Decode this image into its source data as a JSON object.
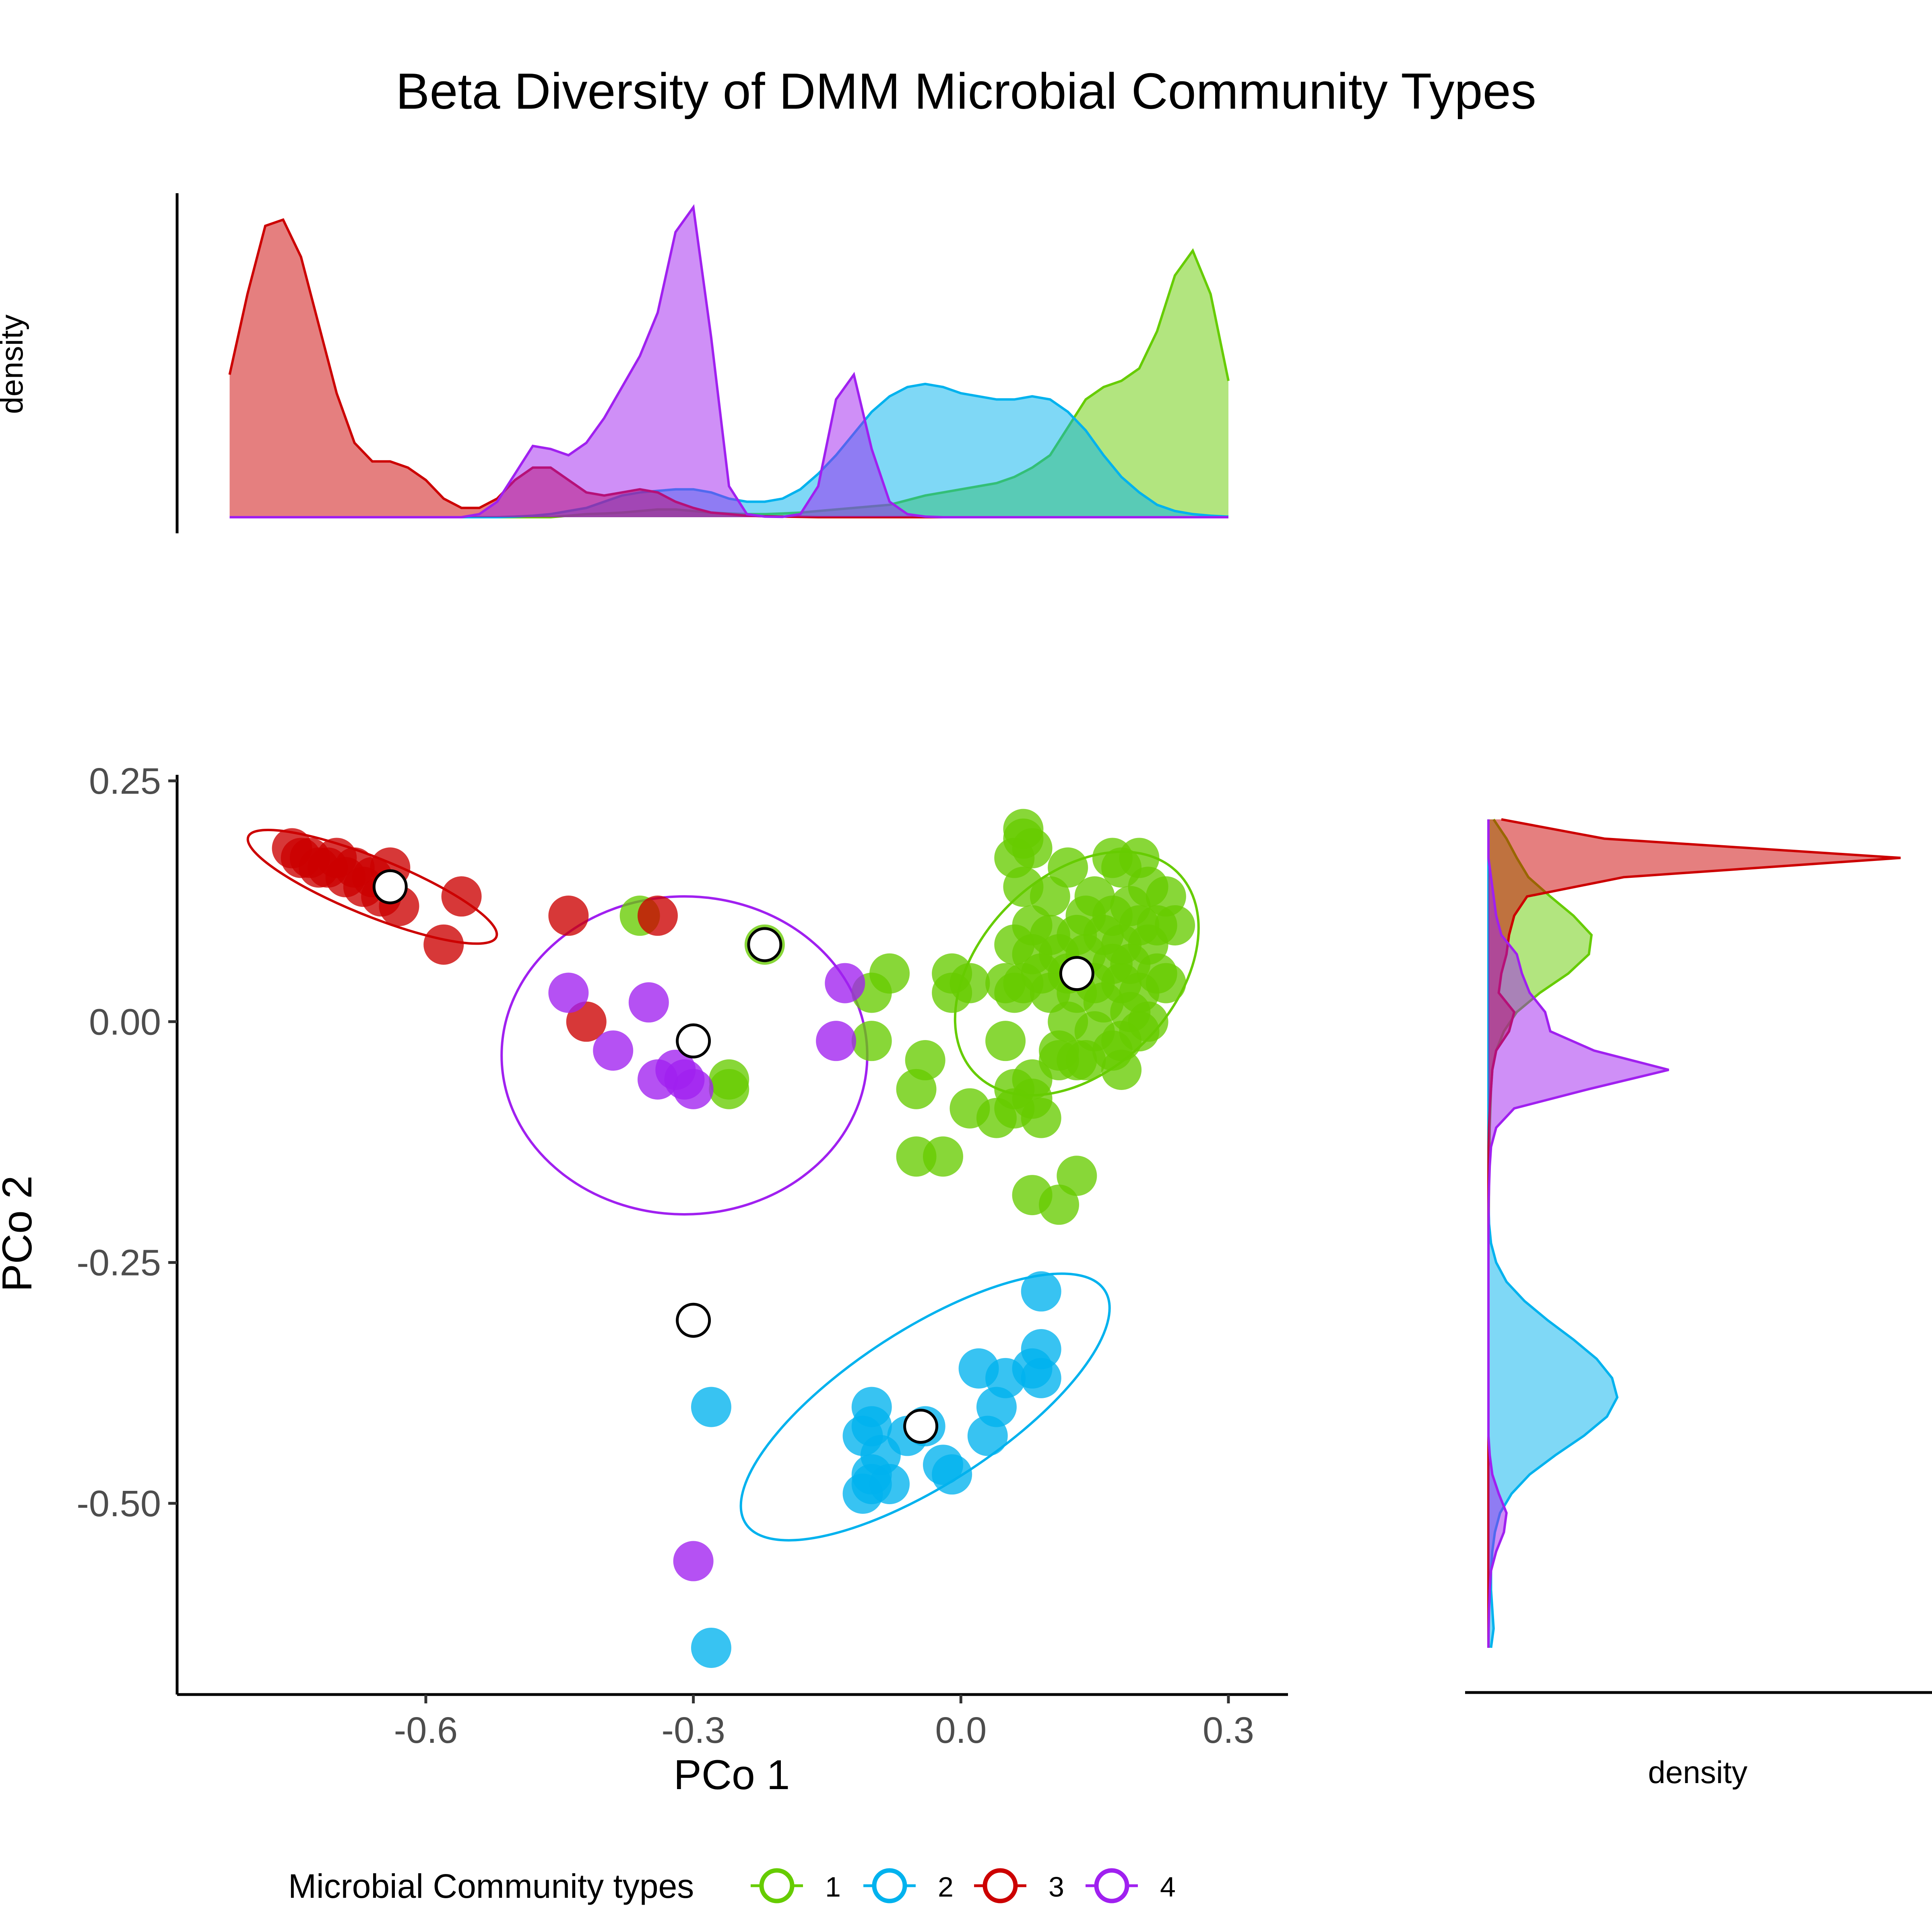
{
  "chart_data": {
    "type": "scatter",
    "title": "Beta Diversity of DMM Microbial Community Types",
    "xlabel": "PCo 1",
    "ylabel": "PCo 2",
    "xlim": [
      -0.875,
      0.38
    ],
    "ylim": [
      -0.7,
      0.26
    ],
    "x_ticks": [
      -0.6,
      -0.3,
      0.0,
      0.3
    ],
    "x_tick_labels": [
      "-0.6",
      "-0.3",
      "0.0",
      "0.3"
    ],
    "y_ticks": [
      0.25,
      0.0,
      -0.25,
      -0.5
    ],
    "y_tick_labels": [
      "0.25",
      "0.00",
      "-0.25",
      "-0.50"
    ],
    "grid": false,
    "top_density_label": "density",
    "right_density_label": "density",
    "legend": {
      "title": "Microbial Community types",
      "position": "bottom",
      "entries": [
        "1",
        "2",
        "3",
        "4"
      ]
    },
    "colors": {
      "1": "#66CC00",
      "2": "#00B2EE",
      "3": "#CC0000",
      "4": "#A020F0"
    },
    "series": [
      {
        "name": "1",
        "color": "#66CC00",
        "points": [
          [
            0.07,
            0.2
          ],
          [
            0.07,
            0.19
          ],
          [
            0.08,
            0.18
          ],
          [
            0.06,
            0.17
          ],
          [
            0.12,
            0.16
          ],
          [
            0.17,
            0.17
          ],
          [
            0.2,
            0.17
          ],
          [
            0.18,
            0.16
          ],
          [
            0.07,
            0.14
          ],
          [
            0.1,
            0.13
          ],
          [
            0.15,
            0.13
          ],
          [
            0.21,
            0.14
          ],
          [
            0.23,
            0.13
          ],
          [
            0.19,
            0.12
          ],
          [
            0.14,
            0.11
          ],
          [
            0.17,
            0.11
          ],
          [
            0.2,
            0.1
          ],
          [
            0.22,
            0.1
          ],
          [
            0.24,
            0.1
          ],
          [
            0.08,
            0.1
          ],
          [
            0.1,
            0.09
          ],
          [
            0.13,
            0.09
          ],
          [
            0.16,
            0.09
          ],
          [
            0.18,
            0.08
          ],
          [
            0.21,
            0.08
          ],
          [
            0.06,
            0.08
          ],
          [
            0.08,
            0.07
          ],
          [
            0.11,
            0.07
          ],
          [
            0.14,
            0.07
          ],
          [
            0.17,
            0.06
          ],
          [
            0.19,
            0.06
          ],
          [
            0.22,
            0.05
          ],
          [
            0.23,
            0.04
          ],
          [
            0.09,
            0.05
          ],
          [
            0.12,
            0.05
          ],
          [
            0.15,
            0.04
          ],
          [
            0.18,
            0.04
          ],
          [
            0.2,
            0.03
          ],
          [
            0.07,
            0.04
          ],
          [
            0.1,
            0.03
          ],
          [
            0.13,
            0.03
          ],
          [
            0.16,
            0.02
          ],
          [
            0.19,
            0.01
          ],
          [
            0.21,
            0.0
          ],
          [
            0.12,
            0.0
          ],
          [
            0.15,
            -0.01
          ],
          [
            0.18,
            -0.02
          ],
          [
            0.2,
            -0.01
          ],
          [
            0.11,
            -0.03
          ],
          [
            0.14,
            -0.04
          ],
          [
            0.17,
            -0.03
          ],
          [
            0.18,
            -0.05
          ],
          [
            0.05,
            0.04
          ],
          [
            0.06,
            0.03
          ],
          [
            0.01,
            0.04
          ],
          [
            -0.01,
            0.05
          ],
          [
            -0.01,
            0.03
          ],
          [
            -0.08,
            0.05
          ],
          [
            -0.1,
            0.03
          ],
          [
            -0.1,
            -0.02
          ],
          [
            -0.04,
            -0.04
          ],
          [
            -0.05,
            -0.07
          ],
          [
            0.01,
            -0.09
          ],
          [
            0.04,
            -0.1
          ],
          [
            0.06,
            -0.09
          ],
          [
            0.08,
            -0.08
          ],
          [
            0.09,
            -0.1
          ],
          [
            0.06,
            -0.07
          ],
          [
            0.08,
            -0.06
          ],
          [
            0.05,
            -0.02
          ],
          [
            0.11,
            -0.04
          ],
          [
            0.13,
            -0.04
          ],
          [
            -0.05,
            -0.14
          ],
          [
            -0.02,
            -0.14
          ],
          [
            0.08,
            -0.18
          ],
          [
            0.11,
            -0.19
          ],
          [
            0.13,
            -0.16
          ],
          [
            -0.36,
            0.11
          ],
          [
            -0.26,
            -0.06
          ],
          [
            -0.26,
            -0.07
          ],
          [
            -0.22,
            0.08
          ]
        ]
      },
      {
        "name": "2",
        "color": "#00B2EE",
        "points": [
          [
            0.09,
            -0.28
          ],
          [
            0.09,
            -0.34
          ],
          [
            0.08,
            -0.36
          ],
          [
            0.09,
            -0.37
          ],
          [
            0.05,
            -0.37
          ],
          [
            0.02,
            -0.36
          ],
          [
            0.04,
            -0.4
          ],
          [
            0.03,
            -0.43
          ],
          [
            -0.06,
            -0.43
          ],
          [
            -0.04,
            -0.42
          ],
          [
            -0.1,
            -0.4
          ],
          [
            -0.1,
            -0.42
          ],
          [
            -0.11,
            -0.43
          ],
          [
            -0.09,
            -0.45
          ],
          [
            -0.1,
            -0.47
          ],
          [
            -0.08,
            -0.48
          ],
          [
            -0.1,
            -0.48
          ],
          [
            -0.11,
            -0.49
          ],
          [
            -0.01,
            -0.47
          ],
          [
            -0.02,
            -0.46
          ],
          [
            -0.28,
            -0.4
          ],
          [
            -0.28,
            -0.65
          ]
        ]
      },
      {
        "name": "3",
        "color": "#CC0000",
        "points": [
          [
            -0.75,
            0.18
          ],
          [
            -0.74,
            0.17
          ],
          [
            -0.72,
            0.16
          ],
          [
            -0.73,
            0.17
          ],
          [
            -0.71,
            0.16
          ],
          [
            -0.7,
            0.17
          ],
          [
            -0.69,
            0.15
          ],
          [
            -0.68,
            0.16
          ],
          [
            -0.67,
            0.14
          ],
          [
            -0.66,
            0.15
          ],
          [
            -0.65,
            0.13
          ],
          [
            -0.64,
            0.16
          ],
          [
            -0.63,
            0.12
          ],
          [
            -0.56,
            0.13
          ],
          [
            -0.58,
            0.08
          ],
          [
            -0.44,
            0.11
          ],
          [
            -0.34,
            0.11
          ],
          [
            -0.42,
            0.0
          ]
        ]
      },
      {
        "name": "4",
        "color": "#A020F0",
        "points": [
          [
            -0.44,
            0.03
          ],
          [
            -0.35,
            0.02
          ],
          [
            -0.39,
            -0.03
          ],
          [
            -0.34,
            -0.06
          ],
          [
            -0.32,
            -0.05
          ],
          [
            -0.31,
            -0.06
          ],
          [
            -0.3,
            -0.07
          ],
          [
            -0.14,
            -0.02
          ],
          [
            -0.13,
            0.04
          ],
          [
            -0.3,
            -0.56
          ]
        ]
      }
    ],
    "centroids": [
      {
        "group": "1",
        "x": 0.13,
        "y": 0.05
      },
      {
        "group": "2",
        "x": -0.045,
        "y": -0.42
      },
      {
        "group": "3",
        "x": -0.64,
        "y": 0.14
      },
      {
        "group": "4",
        "x": -0.3,
        "y": -0.02
      },
      {
        "group": "4",
        "x": -0.3,
        "y": -0.31
      },
      {
        "group": "1",
        "x": -0.22,
        "y": 0.08
      }
    ],
    "ellipses": [
      {
        "group": "1",
        "cx": 0.13,
        "cy": 0.05,
        "rx": 0.16,
        "ry": 0.1,
        "angle": 45
      },
      {
        "group": "2",
        "cx": -0.04,
        "cy": -0.4,
        "rx": 0.24,
        "ry": 0.08,
        "angle": 33
      },
      {
        "group": "3",
        "cx": -0.66,
        "cy": 0.14,
        "rx": 0.15,
        "ry": 0.03,
        "angle": -22
      },
      {
        "group": "4",
        "cx": -0.31,
        "cy": -0.035,
        "rx": 0.205,
        "ry": 0.165,
        "angle": 0
      }
    ],
    "density_x": {
      "x": [
        -0.82,
        -0.8,
        -0.78,
        -0.76,
        -0.74,
        -0.72,
        -0.7,
        -0.68,
        -0.66,
        -0.64,
        -0.62,
        -0.6,
        -0.58,
        -0.56,
        -0.54,
        -0.52,
        -0.5,
        -0.48,
        -0.46,
        -0.44,
        -0.42,
        -0.4,
        -0.38,
        -0.36,
        -0.34,
        -0.32,
        -0.3,
        -0.28,
        -0.26,
        -0.24,
        -0.22,
        -0.2,
        -0.18,
        -0.16,
        -0.14,
        -0.12,
        -0.1,
        -0.08,
        -0.06,
        -0.04,
        -0.02,
        0.0,
        0.02,
        0.04,
        0.06,
        0.08,
        0.1,
        0.12,
        0.14,
        0.16,
        0.18,
        0.2,
        0.22,
        0.24,
        0.26,
        0.28,
        0.3
      ],
      "1": [
        0,
        0,
        0,
        0,
        0,
        0,
        0,
        0,
        0,
        0,
        0,
        0,
        0,
        0,
        0,
        0,
        0,
        0,
        0,
        0.005,
        0.01,
        0.012,
        0.015,
        0.02,
        0.025,
        0.025,
        0.02,
        0.015,
        0.012,
        0.01,
        0.01,
        0.012,
        0.015,
        0.02,
        0.025,
        0.03,
        0.035,
        0.04,
        0.055,
        0.07,
        0.08,
        0.09,
        0.1,
        0.11,
        0.13,
        0.16,
        0.2,
        0.29,
        0.38,
        0.42,
        0.44,
        0.48,
        0.6,
        0.78,
        0.86,
        0.72,
        0.44
      ],
      "2": [
        0,
        0,
        0,
        0,
        0,
        0,
        0,
        0,
        0,
        0,
        0,
        0,
        0,
        0,
        0,
        0,
        0.002,
        0.005,
        0.01,
        0.02,
        0.03,
        0.05,
        0.07,
        0.08,
        0.085,
        0.09,
        0.09,
        0.08,
        0.06,
        0.05,
        0.05,
        0.06,
        0.09,
        0.14,
        0.2,
        0.27,
        0.34,
        0.39,
        0.42,
        0.43,
        0.42,
        0.4,
        0.39,
        0.38,
        0.38,
        0.39,
        0.38,
        0.34,
        0.28,
        0.2,
        0.13,
        0.08,
        0.04,
        0.02,
        0.01,
        0.005,
        0.002
      ],
      "3": [
        0.46,
        0.72,
        0.94,
        0.96,
        0.84,
        0.62,
        0.4,
        0.24,
        0.18,
        0.18,
        0.16,
        0.12,
        0.06,
        0.03,
        0.03,
        0.06,
        0.12,
        0.16,
        0.16,
        0.12,
        0.08,
        0.07,
        0.08,
        0.09,
        0.08,
        0.05,
        0.03,
        0.015,
        0.01,
        0.005,
        0.003,
        0.002,
        0.001,
        0,
        0,
        0,
        0,
        0,
        0,
        0,
        0,
        0,
        0,
        0,
        0,
        0,
        0,
        0,
        0,
        0,
        0,
        0,
        0,
        0,
        0,
        0,
        0
      ],
      "4": [
        0,
        0,
        0,
        0,
        0,
        0,
        0,
        0,
        0,
        0,
        0,
        0,
        0,
        0,
        0.01,
        0.05,
        0.14,
        0.23,
        0.22,
        0.2,
        0.24,
        0.32,
        0.42,
        0.52,
        0.66,
        0.92,
        1.0,
        0.58,
        0.1,
        0.01,
        0.002,
        0.001,
        0.01,
        0.1,
        0.38,
        0.46,
        0.22,
        0.05,
        0.01,
        0.002,
        0,
        0,
        0,
        0,
        0,
        0,
        0,
        0,
        0,
        0,
        0,
        0,
        0,
        0,
        0,
        0,
        0
      ]
    },
    "density_y": {
      "y": [
        0.21,
        0.19,
        0.17,
        0.15,
        0.13,
        0.11,
        0.09,
        0.07,
        0.05,
        0.03,
        0.01,
        -0.01,
        -0.03,
        -0.05,
        -0.07,
        -0.09,
        -0.11,
        -0.13,
        -0.15,
        -0.17,
        -0.19,
        -0.21,
        -0.23,
        -0.25,
        -0.27,
        -0.29,
        -0.31,
        -0.33,
        -0.35,
        -0.37,
        -0.39,
        -0.41,
        -0.43,
        -0.45,
        -0.47,
        -0.49,
        -0.51,
        -0.53,
        -0.55,
        -0.57,
        -0.59,
        -0.61,
        -0.63,
        -0.65
      ],
      "1": [
        0.04,
        0.14,
        0.22,
        0.31,
        0.48,
        0.66,
        0.8,
        0.78,
        0.62,
        0.4,
        0.22,
        0.12,
        0.06,
        0.03,
        0.02,
        0.015,
        0.01,
        0.008,
        0.006,
        0.004,
        0.003,
        0.002,
        0.001,
        0,
        0,
        0,
        0,
        0,
        0,
        0,
        0,
        0,
        0,
        0,
        0,
        0,
        0,
        0,
        0,
        0,
        0,
        0,
        0,
        0.002
      ],
      "2": [
        0,
        0,
        0,
        0,
        0,
        0,
        0,
        0,
        0,
        0,
        0,
        0,
        0,
        0,
        0,
        0,
        0,
        0,
        0,
        0,
        0.001,
        0.005,
        0.02,
        0.06,
        0.14,
        0.28,
        0.46,
        0.66,
        0.84,
        0.96,
        1.0,
        0.92,
        0.74,
        0.52,
        0.32,
        0.18,
        0.09,
        0.05,
        0.03,
        0.02,
        0.02,
        0.03,
        0.04,
        0.02
      ],
      "3": [
        0.1,
        0.9,
        3.2,
        1.05,
        0.3,
        0.2,
        0.16,
        0.14,
        0.1,
        0.08,
        0.2,
        0.16,
        0.06,
        0.03,
        0.02,
        0.01,
        0.005,
        0.002,
        0.001,
        0,
        0,
        0,
        0,
        0,
        0,
        0,
        0,
        0,
        0,
        0,
        0,
        0,
        0,
        0,
        0,
        0,
        0,
        0,
        0,
        0,
        0,
        0,
        0,
        0
      ],
      "4": [
        0,
        0,
        0,
        0.02,
        0.04,
        0.06,
        0.1,
        0.22,
        0.26,
        0.32,
        0.44,
        0.48,
        0.82,
        1.4,
        0.78,
        0.2,
        0.06,
        0.02,
        0.01,
        0.005,
        0.002,
        0.001,
        0,
        0,
        0,
        0,
        0,
        0,
        0,
        0,
        0,
        0,
        0,
        0.01,
        0.03,
        0.08,
        0.14,
        0.12,
        0.06,
        0.02,
        0.01,
        0.005,
        0.002,
        0
      ]
    }
  }
}
